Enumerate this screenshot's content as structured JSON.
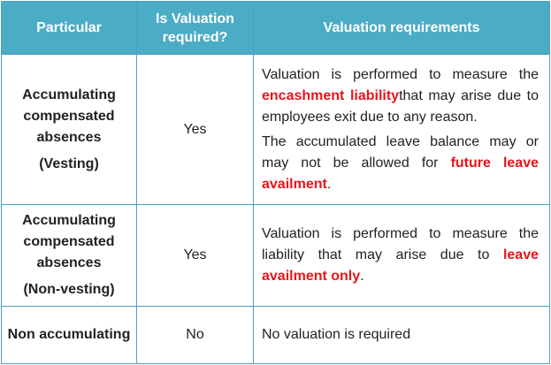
{
  "headers": {
    "particular": "Particular",
    "required": "Is Valuation required?",
    "requirements": "Valuation requirements"
  },
  "rows": [
    {
      "particular": "Accumulating compensated absences",
      "qualifier": "(Vesting)",
      "required": "Yes",
      "p1": {
        "a": "Valuation is performed to measure the ",
        "red": "encashment liability",
        "b": "that may arise due to employees exit due to any reason."
      },
      "p2": {
        "a": "The accumulated leave balance may or may not be allowed for ",
        "red": "future leave availment",
        "b": "."
      }
    },
    {
      "particular": "Accumulating compensated absences",
      "qualifier": "(Non-vesting)",
      "required": "Yes",
      "p1": {
        "a": "Valuation is performed to measure the liability that may arise due to ",
        "red": "leave availment only",
        "b": "."
      }
    },
    {
      "particular": "Non accumulating",
      "required": "No",
      "requirement": "No valuation is required"
    }
  ],
  "colors": {
    "header_bg": "#4bacc6",
    "header_text": "#ffffff",
    "border": "#4f9fbd",
    "highlight": "#e8141b"
  }
}
